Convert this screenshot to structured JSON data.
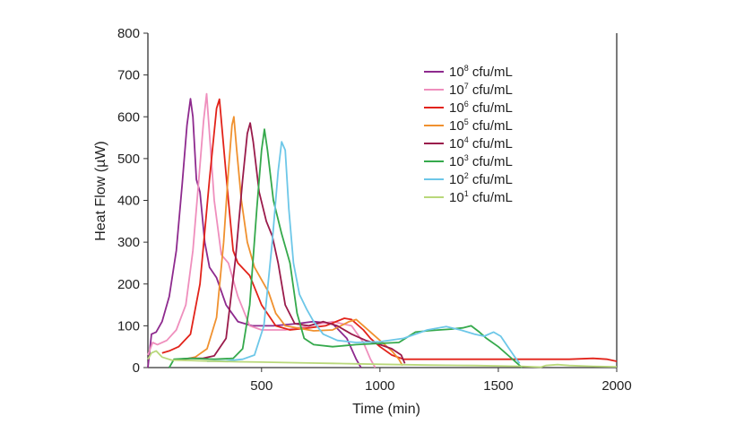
{
  "chart_data": {
    "type": "line",
    "xlabel": "Time (min)",
    "ylabel": "Heat Flow (µW)",
    "xlim": [
      20,
      2000
    ],
    "ylim": [
      0,
      800
    ],
    "x_ticks": [
      500,
      1000,
      1500,
      2000
    ],
    "y_ticks": [
      0,
      100,
      200,
      300,
      400,
      500,
      600,
      700,
      800
    ],
    "grid": false,
    "legend_position": "top-right",
    "series": [
      {
        "name": "10^8 cfu/mL",
        "base": "10",
        "exp": "8",
        "unit": " cfu/mL",
        "color": "#8e2a8e",
        "points": [
          [
            20,
            0
          ],
          [
            35,
            80
          ],
          [
            55,
            85
          ],
          [
            80,
            110
          ],
          [
            110,
            170
          ],
          [
            140,
            280
          ],
          [
            165,
            440
          ],
          [
            185,
            580
          ],
          [
            200,
            643
          ],
          [
            210,
            600
          ],
          [
            225,
            450
          ],
          [
            240,
            420
          ],
          [
            260,
            300
          ],
          [
            280,
            240
          ],
          [
            310,
            215
          ],
          [
            350,
            150
          ],
          [
            400,
            110
          ],
          [
            460,
            100
          ],
          [
            550,
            100
          ],
          [
            650,
            105
          ],
          [
            720,
            110
          ],
          [
            800,
            105
          ],
          [
            860,
            70
          ],
          [
            900,
            20
          ],
          [
            920,
            0
          ]
        ]
      },
      {
        "name": "10^7 cfu/mL",
        "base": "10",
        "exp": "7",
        "unit": " cfu/mL",
        "color": "#ef8fbd",
        "points": [
          [
            20,
            30
          ],
          [
            40,
            60
          ],
          [
            60,
            55
          ],
          [
            100,
            65
          ],
          [
            140,
            90
          ],
          [
            180,
            150
          ],
          [
            210,
            280
          ],
          [
            235,
            450
          ],
          [
            255,
            590
          ],
          [
            268,
            655
          ],
          [
            280,
            560
          ],
          [
            300,
            400
          ],
          [
            330,
            270
          ],
          [
            360,
            250
          ],
          [
            400,
            170
          ],
          [
            450,
            100
          ],
          [
            500,
            90
          ],
          [
            600,
            90
          ],
          [
            700,
            100
          ],
          [
            800,
            110
          ],
          [
            880,
            100
          ],
          [
            930,
            60
          ],
          [
            960,
            20
          ],
          [
            980,
            0
          ]
        ]
      },
      {
        "name": "10^6 cfu/mL",
        "base": "10",
        "exp": "6",
        "unit": " cfu/mL",
        "color": "#e2231a",
        "points": [
          [
            80,
            35
          ],
          [
            110,
            40
          ],
          [
            150,
            50
          ],
          [
            200,
            80
          ],
          [
            240,
            200
          ],
          [
            280,
            450
          ],
          [
            310,
            620
          ],
          [
            322,
            642
          ],
          [
            335,
            560
          ],
          [
            360,
            400
          ],
          [
            380,
            280
          ],
          [
            400,
            250
          ],
          [
            450,
            220
          ],
          [
            500,
            150
          ],
          [
            560,
            100
          ],
          [
            620,
            90
          ],
          [
            700,
            95
          ],
          [
            770,
            100
          ],
          [
            850,
            118
          ],
          [
            880,
            115
          ],
          [
            930,
            90
          ],
          [
            960,
            70
          ],
          [
            1000,
            50
          ],
          [
            1050,
            30
          ],
          [
            1100,
            20
          ],
          [
            1200,
            20
          ],
          [
            1400,
            20
          ],
          [
            1600,
            20
          ],
          [
            1800,
            20
          ],
          [
            1900,
            22
          ],
          [
            1960,
            20
          ],
          [
            2000,
            15
          ]
        ]
      },
      {
        "name": "10^5 cfu/mL",
        "base": "10",
        "exp": "5",
        "unit": " cfu/mL",
        "color": "#f0912f",
        "points": [
          [
            160,
            18
          ],
          [
            220,
            25
          ],
          [
            270,
            45
          ],
          [
            310,
            120
          ],
          [
            340,
            300
          ],
          [
            360,
            470
          ],
          [
            375,
            580
          ],
          [
            383,
            600
          ],
          [
            395,
            520
          ],
          [
            415,
            400
          ],
          [
            440,
            300
          ],
          [
            470,
            240
          ],
          [
            500,
            210
          ],
          [
            530,
            180
          ],
          [
            560,
            130
          ],
          [
            600,
            100
          ],
          [
            650,
            95
          ],
          [
            720,
            88
          ],
          [
            800,
            90
          ],
          [
            870,
            110
          ],
          [
            900,
            115
          ],
          [
            930,
            100
          ],
          [
            970,
            80
          ],
          [
            1010,
            60
          ],
          [
            1050,
            40
          ],
          [
            1080,
            20
          ],
          [
            1095,
            5
          ]
        ]
      },
      {
        "name": "10^4 cfu/mL",
        "base": "10",
        "exp": "4",
        "unit": " cfu/mL",
        "color": "#9a1b4b",
        "points": [
          [
            150,
            20
          ],
          [
            200,
            22
          ],
          [
            250,
            22
          ],
          [
            300,
            28
          ],
          [
            350,
            70
          ],
          [
            390,
            260
          ],
          [
            420,
            450
          ],
          [
            440,
            560
          ],
          [
            452,
            585
          ],
          [
            465,
            540
          ],
          [
            490,
            420
          ],
          [
            520,
            350
          ],
          [
            545,
            315
          ],
          [
            570,
            250
          ],
          [
            600,
            150
          ],
          [
            640,
            105
          ],
          [
            700,
            100
          ],
          [
            760,
            110
          ],
          [
            820,
            100
          ],
          [
            880,
            80
          ],
          [
            940,
            65
          ],
          [
            1000,
            55
          ],
          [
            1050,
            45
          ],
          [
            1090,
            30
          ],
          [
            1105,
            10
          ]
        ]
      },
      {
        "name": "10^3 cfu/mL",
        "base": "10",
        "exp": "3",
        "unit": " cfu/mL",
        "color": "#35a94c",
        "points": [
          [
            110,
            0
          ],
          [
            130,
            20
          ],
          [
            200,
            22
          ],
          [
            300,
            20
          ],
          [
            380,
            22
          ],
          [
            420,
            45
          ],
          [
            450,
            150
          ],
          [
            480,
            380
          ],
          [
            500,
            520
          ],
          [
            512,
            570
          ],
          [
            525,
            520
          ],
          [
            550,
            400
          ],
          [
            585,
            320
          ],
          [
            620,
            250
          ],
          [
            650,
            130
          ],
          [
            680,
            70
          ],
          [
            720,
            55
          ],
          [
            800,
            50
          ],
          [
            900,
            55
          ],
          [
            1000,
            58
          ],
          [
            1080,
            60
          ],
          [
            1150,
            85
          ],
          [
            1200,
            88
          ],
          [
            1250,
            90
          ],
          [
            1300,
            92
          ],
          [
            1350,
            95
          ],
          [
            1385,
            100
          ],
          [
            1420,
            85
          ],
          [
            1450,
            70
          ],
          [
            1500,
            50
          ],
          [
            1540,
            30
          ],
          [
            1580,
            10
          ],
          [
            1600,
            0
          ]
        ]
      },
      {
        "name": "10^2 cfu/mL",
        "base": "10",
        "exp": "2",
        "unit": " cfu/mL",
        "color": "#6dc7e8",
        "points": [
          [
            270,
            15
          ],
          [
            350,
            16
          ],
          [
            420,
            20
          ],
          [
            470,
            30
          ],
          [
            510,
            100
          ],
          [
            545,
            300
          ],
          [
            570,
            470
          ],
          [
            585,
            540
          ],
          [
            600,
            520
          ],
          [
            615,
            380
          ],
          [
            635,
            250
          ],
          [
            660,
            175
          ],
          [
            690,
            140
          ],
          [
            720,
            110
          ],
          [
            760,
            80
          ],
          [
            820,
            65
          ],
          [
            900,
            60
          ],
          [
            1000,
            62
          ],
          [
            1100,
            70
          ],
          [
            1200,
            90
          ],
          [
            1280,
            98
          ],
          [
            1340,
            90
          ],
          [
            1400,
            80
          ],
          [
            1440,
            75
          ],
          [
            1480,
            85
          ],
          [
            1510,
            75
          ],
          [
            1540,
            50
          ],
          [
            1570,
            25
          ],
          [
            1590,
            10
          ]
        ]
      },
      {
        "name": "10^1 cfu/mL",
        "base": "10",
        "exp": "1",
        "unit": " cfu/mL",
        "color": "#b9d87a",
        "points": [
          [
            20,
            20
          ],
          [
            35,
            35
          ],
          [
            55,
            40
          ],
          [
            80,
            25
          ],
          [
            120,
            18
          ],
          [
            200,
            17
          ],
          [
            300,
            15
          ],
          [
            400,
            14
          ],
          [
            500,
            13
          ],
          [
            600,
            12
          ],
          [
            700,
            11
          ],
          [
            800,
            10
          ],
          [
            900,
            9
          ],
          [
            1000,
            8
          ],
          [
            1200,
            6
          ],
          [
            1400,
            5
          ],
          [
            1600,
            3
          ],
          [
            1680,
            1
          ],
          [
            1700,
            5
          ],
          [
            1750,
            7
          ],
          [
            1800,
            5
          ],
          [
            1900,
            3
          ],
          [
            2000,
            2
          ]
        ]
      }
    ]
  }
}
